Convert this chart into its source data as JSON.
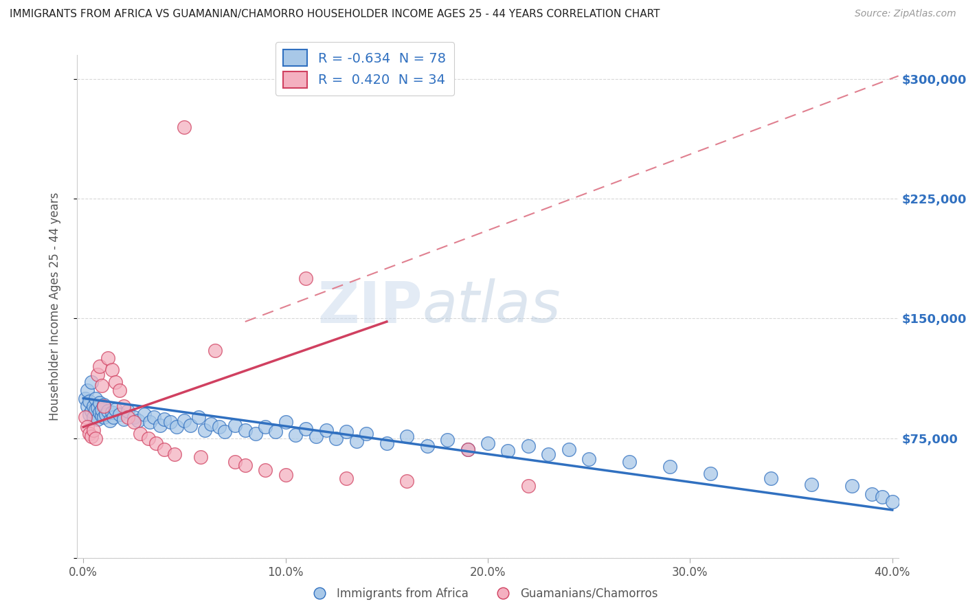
{
  "title": "IMMIGRANTS FROM AFRICA VS GUAMANIAN/CHAMORRO HOUSEHOLDER INCOME AGES 25 - 44 YEARS CORRELATION CHART",
  "source": "Source: ZipAtlas.com",
  "ylabel": "Householder Income Ages 25 - 44 years",
  "xlim": [
    -0.003,
    0.403
  ],
  "ylim": [
    0,
    315000
  ],
  "yticks": [
    0,
    75000,
    150000,
    225000,
    300000
  ],
  "ytick_labels_right": [
    "",
    "$75,000",
    "$150,000",
    "$225,000",
    "$300,000"
  ],
  "xticks": [
    0.0,
    0.1,
    0.2,
    0.3,
    0.4
  ],
  "xtick_labels": [
    "0.0%",
    "10.0%",
    "20.0%",
    "30.0%",
    "40.0%"
  ],
  "africa_R": -0.634,
  "africa_N": 78,
  "guam_R": 0.42,
  "guam_N": 34,
  "africa_color": "#a8c8e8",
  "guam_color": "#f4b0c0",
  "africa_line_color": "#3070c0",
  "guam_line_color": "#d04060",
  "ref_line_color": "#e08090",
  "background_color": "#ffffff",
  "watermark_zip": "ZIP",
  "watermark_atlas": "atlas",
  "legend_africa_label": "R = -0.634  N = 78",
  "legend_guam_label": "R =  0.420  N = 34",
  "africa_line_x0": 0.0,
  "africa_line_y0": 100000,
  "africa_line_x1": 0.4,
  "africa_line_y1": 30000,
  "guam_line_x0": 0.0,
  "guam_line_y0": 82000,
  "guam_line_x1": 0.15,
  "guam_line_y1": 148000,
  "ref_line_x0": 0.08,
  "ref_line_y0": 148000,
  "ref_line_x1": 0.403,
  "ref_line_y1": 302000,
  "africa_x": [
    0.001,
    0.002,
    0.002,
    0.003,
    0.003,
    0.004,
    0.004,
    0.005,
    0.005,
    0.006,
    0.006,
    0.007,
    0.007,
    0.008,
    0.008,
    0.009,
    0.009,
    0.01,
    0.01,
    0.011,
    0.012,
    0.013,
    0.014,
    0.015,
    0.016,
    0.018,
    0.02,
    0.022,
    0.025,
    0.027,
    0.03,
    0.033,
    0.035,
    0.038,
    0.04,
    0.043,
    0.046,
    0.05,
    0.053,
    0.057,
    0.06,
    0.063,
    0.067,
    0.07,
    0.075,
    0.08,
    0.085,
    0.09,
    0.095,
    0.1,
    0.105,
    0.11,
    0.115,
    0.12,
    0.125,
    0.13,
    0.135,
    0.14,
    0.15,
    0.16,
    0.17,
    0.18,
    0.19,
    0.2,
    0.21,
    0.22,
    0.23,
    0.24,
    0.25,
    0.27,
    0.29,
    0.31,
    0.34,
    0.36,
    0.38,
    0.39,
    0.395,
    0.4
  ],
  "africa_y": [
    100000,
    95000,
    105000,
    90000,
    98000,
    92000,
    110000,
    88000,
    95000,
    93000,
    100000,
    87000,
    94000,
    91000,
    97000,
    89000,
    93000,
    88000,
    96000,
    90000,
    92000,
    86000,
    91000,
    88000,
    93000,
    90000,
    87000,
    92000,
    88000,
    86000,
    90000,
    85000,
    88000,
    83000,
    87000,
    85000,
    82000,
    86000,
    83000,
    88000,
    80000,
    84000,
    82000,
    79000,
    83000,
    80000,
    78000,
    82000,
    79000,
    85000,
    77000,
    81000,
    76000,
    80000,
    75000,
    79000,
    73000,
    78000,
    72000,
    76000,
    70000,
    74000,
    68000,
    72000,
    67000,
    70000,
    65000,
    68000,
    62000,
    60000,
    57000,
    53000,
    50000,
    46000,
    45000,
    40000,
    38000,
    35000
  ],
  "guam_x": [
    0.001,
    0.002,
    0.003,
    0.004,
    0.005,
    0.006,
    0.007,
    0.008,
    0.009,
    0.01,
    0.012,
    0.014,
    0.016,
    0.018,
    0.02,
    0.022,
    0.025,
    0.028,
    0.032,
    0.036,
    0.04,
    0.045,
    0.05,
    0.058,
    0.065,
    0.075,
    0.08,
    0.09,
    0.1,
    0.11,
    0.13,
    0.16,
    0.19,
    0.22
  ],
  "guam_y": [
    88000,
    82000,
    78000,
    76000,
    80000,
    75000,
    115000,
    120000,
    108000,
    95000,
    125000,
    118000,
    110000,
    105000,
    95000,
    88000,
    85000,
    78000,
    75000,
    72000,
    68000,
    65000,
    270000,
    63000,
    130000,
    60000,
    58000,
    55000,
    52000,
    175000,
    50000,
    48000,
    68000,
    45000
  ]
}
